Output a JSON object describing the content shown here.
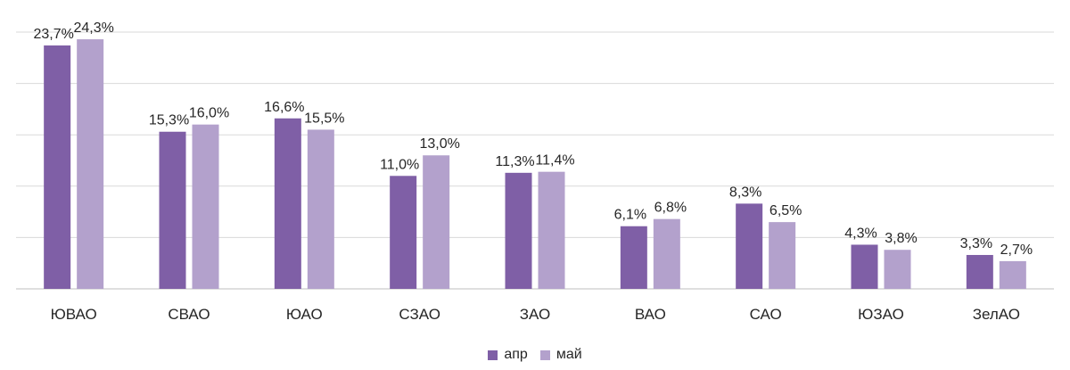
{
  "chart_data": {
    "type": "bar",
    "categories": [
      "ЮВАО",
      "СВАО",
      "ЮАО",
      "СЗАО",
      "ЗАО",
      "ВАО",
      "САО",
      "ЮЗАО",
      "ЗелАО"
    ],
    "series": [
      {
        "name": "апр",
        "color": "#7f5fa6",
        "values": [
          23.7,
          15.3,
          16.6,
          11.0,
          11.3,
          6.1,
          8.3,
          4.3,
          3.3
        ],
        "labels": [
          "23,7%",
          "15,3%",
          "16,6%",
          "11,0%",
          "11,3%",
          "6,1%",
          "8,3%",
          "4,3%",
          "3,3%"
        ]
      },
      {
        "name": "май",
        "color": "#b3a1cc",
        "values": [
          24.3,
          16.0,
          15.5,
          13.0,
          11.4,
          6.8,
          6.5,
          3.8,
          2.7
        ],
        "labels": [
          "24,3%",
          "16,0%",
          "15,5%",
          "13,0%",
          "11,4%",
          "6,8%",
          "6,5%",
          "3,8%",
          "2,7%"
        ]
      }
    ],
    "ylim": [
      0,
      25
    ],
    "grid": true,
    "legend_position": "bottom-center"
  }
}
